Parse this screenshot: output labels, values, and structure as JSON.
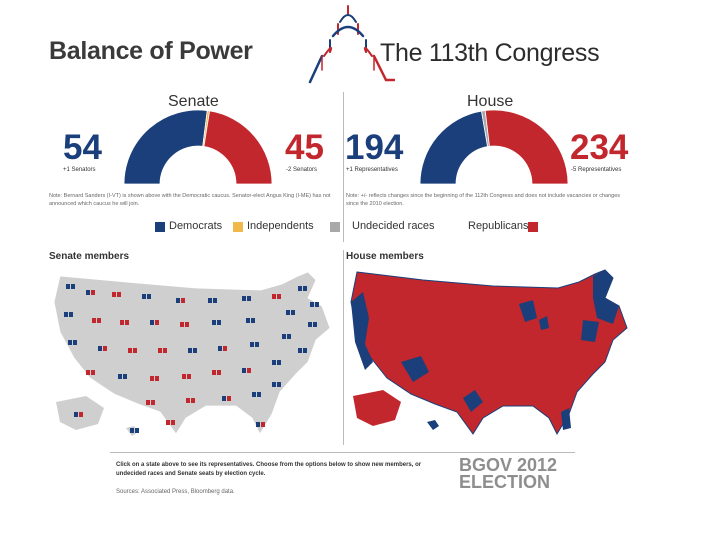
{
  "header": {
    "left_title": "Balance of Power",
    "right_title": "The 113th Congress"
  },
  "colors": {
    "democrats": "#1b3f7a",
    "independents": "#f0b94a",
    "undecided": "#a8a8a8",
    "republicans": "#c1272d",
    "map_gray": "#cfcfcf"
  },
  "chart_data": [
    {
      "type": "pie",
      "title": "Senate",
      "shape": "half-donut",
      "total_seats": 100,
      "slices": [
        {
          "name": "Democrats",
          "value": 54
        },
        {
          "name": "Independents",
          "value": 1
        },
        {
          "name": "Republicans",
          "value": 45
        }
      ],
      "left_value": "54",
      "left_note": "+1 Senators",
      "right_value": "45",
      "right_note": "-2 Senators"
    },
    {
      "type": "pie",
      "title": "House",
      "shape": "half-donut",
      "total_seats": 435,
      "slices": [
        {
          "name": "Democrats",
          "value": 194
        },
        {
          "name": "Undecided races",
          "value": 7
        },
        {
          "name": "Republicans",
          "value": 234
        }
      ],
      "left_value": "194",
      "left_note": "+1 Representatives",
      "right_value": "234",
      "right_note": "-5 Representatives"
    }
  ],
  "notes": {
    "senate": "Note: Bernard Sanders (I-VT) is shown above with the Democratic caucus. Senator-elect Angus King (I-ME) has not announced which caucus he will join.",
    "house": "Note: +/- reflects changes since the beginning of the 112th Congress and does not include vacancies or changes since the 2010 election."
  },
  "legend": [
    {
      "label": "Democrats",
      "key": "democrats"
    },
    {
      "label": "Independents",
      "key": "independents"
    },
    {
      "label": "Undecided races",
      "key": "undecided"
    },
    {
      "label": "Republicans",
      "key": "republicans"
    }
  ],
  "sections": {
    "senate_members": "Senate members",
    "house_members": "House members"
  },
  "footer": {
    "instructions": "Click on a state above to see its representatives. Choose from the options below to show new members, or undecided races and Senate seats by election cycle.",
    "sources": "Sources: Associated Press, Bloomberg data.",
    "logo_line1": "BGOV 2012",
    "logo_line2": "ELECTION"
  }
}
